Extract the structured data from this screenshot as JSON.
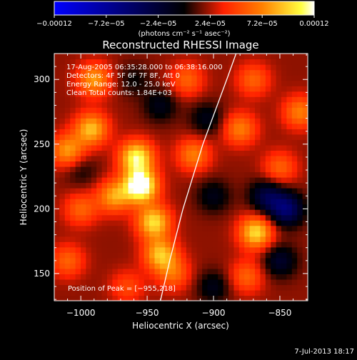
{
  "chart_data": {
    "type": "heatmap",
    "title": "Reconstructed RHESSI Image",
    "xlabel": "Heliocentric X (arcsec)",
    "ylabel": "Heliocentric Y (arcsec)",
    "xlim": [
      -1020,
      -829
    ],
    "ylim": [
      129,
      320
    ],
    "x_ticks": [
      {
        "value": -1000,
        "label": "−1000"
      },
      {
        "value": -950,
        "label": "−950"
      },
      {
        "value": -900,
        "label": "−900"
      },
      {
        "value": -850,
        "label": "−850"
      }
    ],
    "y_ticks": [
      {
        "value": 150,
        "label": "150"
      },
      {
        "value": 200,
        "label": "200"
      },
      {
        "value": 250,
        "label": "250"
      },
      {
        "value": 300,
        "label": "300"
      }
    ],
    "colorbar": {
      "min": -0.00012,
      "max": 0.00012,
      "units": "(photons cm⁻² s⁻¹ asec⁻²)",
      "ticks": [
        {
          "value": -0.00012,
          "label": "−0.00012"
        },
        {
          "value": -7.2e-05,
          "label": "−7.2e−05"
        },
        {
          "value": -2.4e-05,
          "label": "−2.4e−05"
        },
        {
          "value": 2.4e-05,
          "label": "2.4e−05"
        },
        {
          "value": 7.2e-05,
          "label": "7.2e−05"
        },
        {
          "value": 0.00012,
          "label": "0.00012"
        }
      ]
    },
    "annotations": [
      "17-Aug-2005 06:35:28.000 to 06:38:16.000",
      "Detectors: 4F 5F 6F 7F 8F, Att 0",
      "Energy Range: 12.0 - 25.0 keV",
      "Clean     Total counts: 1.84E+03"
    ],
    "peak_label": "Position of Peak = [−955,218]",
    "limb_curve": [
      [
        -940,
        129
      ],
      [
        -933,
        160
      ],
      [
        -923,
        200
      ],
      [
        -908,
        250
      ],
      [
        -890,
        300
      ],
      [
        -883,
        320
      ]
    ],
    "sources": [
      {
        "x": -955,
        "y": 218,
        "v": 0.000115
      },
      {
        "x": -958,
        "y": 240,
        "v": 9e-05
      },
      {
        "x": -945,
        "y": 190,
        "v": 8e-05
      },
      {
        "x": -940,
        "y": 165,
        "v": 7e-05
      },
      {
        "x": -992,
        "y": 262,
        "v": 7e-05
      },
      {
        "x": -1010,
        "y": 245,
        "v": 6e-05
      },
      {
        "x": -975,
        "y": 210,
        "v": 6e-05
      },
      {
        "x": -990,
        "y": 300,
        "v": 6e-05
      },
      {
        "x": -1000,
        "y": 200,
        "v": 4e-05
      },
      {
        "x": -920,
        "y": 300,
        "v": 4e-05
      },
      {
        "x": -915,
        "y": 242,
        "v": 5e-05
      },
      {
        "x": -880,
        "y": 262,
        "v": 5e-05
      },
      {
        "x": -870,
        "y": 300,
        "v": 4e-05
      },
      {
        "x": -868,
        "y": 182,
        "v": 8e-05
      },
      {
        "x": -875,
        "y": 148,
        "v": 4e-05
      },
      {
        "x": -835,
        "y": 275,
        "v": 5e-05
      },
      {
        "x": -850,
        "y": 232,
        "v": 4e-05
      },
      {
        "x": -930,
        "y": 150,
        "v": 4e-05
      },
      {
        "x": -1010,
        "y": 160,
        "v": 4e-05
      },
      {
        "x": -965,
        "y": 140,
        "v": 3e-05
      },
      {
        "x": -900,
        "y": 210,
        "v": -3e-05
      },
      {
        "x": -905,
        "y": 270,
        "v": -3e-05
      },
      {
        "x": -860,
        "y": 210,
        "v": -5e-05
      },
      {
        "x": -845,
        "y": 200,
        "v": -7e-05
      },
      {
        "x": -850,
        "y": 160,
        "v": -4e-05
      },
      {
        "x": -940,
        "y": 280,
        "v": -3e-05
      },
      {
        "x": -1000,
        "y": 230,
        "v": -2e-05
      },
      {
        "x": -960,
        "y": 300,
        "v": -2e-05
      },
      {
        "x": -900,
        "y": 140,
        "v": -3e-05
      }
    ]
  },
  "footer": {
    "timestamp": "7-Jul-2013 18:17"
  }
}
